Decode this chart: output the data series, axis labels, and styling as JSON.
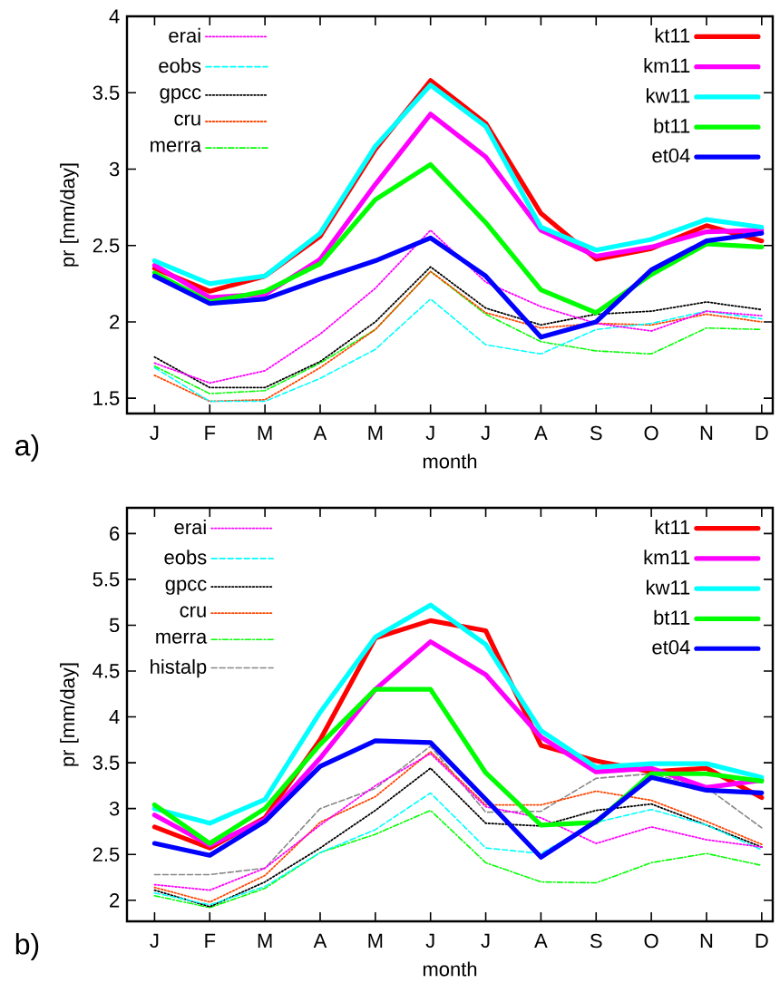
{
  "chart_data": [
    {
      "type": "line",
      "xlabel": "month",
      "ylabel": "pr [mm/day]",
      "annotations": [
        "a)"
      ],
      "categories": [
        "J",
        "F",
        "M",
        "A",
        "M",
        "J",
        "J",
        "A",
        "S",
        "O",
        "N",
        "D"
      ],
      "ylim": [
        1.4,
        4
      ],
      "yticks": [
        1.5,
        2,
        2.5,
        3,
        3.5,
        4
      ],
      "legend": "top",
      "marker": "none",
      "series": [
        {
          "name": "erai",
          "color": "#ff00ff",
          "line_style": "dotted",
          "values": [
            1.73,
            1.6,
            1.68,
            1.92,
            2.22,
            2.6,
            2.26,
            2.1,
            1.99,
            1.94,
            2.07,
            2.04
          ]
        },
        {
          "name": "eobs",
          "color": "#00ffff",
          "line_style": "dashed",
          "values": [
            1.7,
            1.48,
            1.48,
            1.63,
            1.82,
            2.15,
            1.85,
            1.79,
            1.95,
            1.99,
            2.07,
            2.02
          ]
        },
        {
          "name": "gpcc",
          "color": "#000000",
          "line_style": "dotted",
          "values": [
            1.77,
            1.57,
            1.57,
            1.74,
            2.0,
            2.36,
            2.09,
            1.98,
            2.05,
            2.07,
            2.13,
            2.08
          ]
        },
        {
          "name": "cru",
          "color": "#ff4500",
          "line_style": "dotted",
          "values": [
            1.65,
            1.48,
            1.49,
            1.7,
            1.95,
            2.33,
            2.06,
            1.96,
            1.99,
            1.98,
            2.05,
            2.0
          ]
        },
        {
          "name": "merra",
          "color": "#00ff00",
          "line_style": "dashdot",
          "values": [
            1.71,
            1.53,
            1.55,
            1.73,
            1.95,
            2.33,
            2.05,
            1.87,
            1.81,
            1.79,
            1.96,
            1.95
          ]
        },
        {
          "name": "kt11",
          "color": "#ff0000",
          "line_style": "solid",
          "values": [
            2.35,
            2.2,
            2.3,
            2.56,
            3.13,
            3.58,
            3.3,
            2.71,
            2.41,
            2.48,
            2.63,
            2.53
          ]
        },
        {
          "name": "km11",
          "color": "#ff00ff",
          "line_style": "solid",
          "values": [
            2.37,
            2.16,
            2.18,
            2.41,
            2.9,
            3.36,
            3.08,
            2.6,
            2.43,
            2.49,
            2.59,
            2.6
          ]
        },
        {
          "name": "kw11",
          "color": "#00ffff",
          "line_style": "solid",
          "values": [
            2.4,
            2.25,
            2.3,
            2.58,
            3.15,
            3.55,
            3.28,
            2.62,
            2.47,
            2.54,
            2.67,
            2.62
          ]
        },
        {
          "name": "bt11",
          "color": "#00ff00",
          "line_style": "solid",
          "values": [
            2.32,
            2.13,
            2.2,
            2.38,
            2.8,
            3.03,
            2.65,
            2.21,
            2.06,
            2.31,
            2.51,
            2.49
          ]
        },
        {
          "name": "et04",
          "color": "#0000ff",
          "line_style": "solid",
          "values": [
            2.3,
            2.12,
            2.15,
            2.28,
            2.4,
            2.55,
            2.3,
            1.9,
            2.0,
            2.34,
            2.53,
            2.58
          ]
        }
      ]
    },
    {
      "type": "line",
      "xlabel": "month",
      "ylabel": "pr [mm/day]",
      "annotations": [
        "b)"
      ],
      "categories": [
        "J",
        "F",
        "M",
        "A",
        "M",
        "J",
        "J",
        "A",
        "S",
        "O",
        "N",
        "D"
      ],
      "ylim": [
        1.77,
        6.28
      ],
      "yticks": [
        2,
        2.5,
        3,
        3.5,
        4,
        4.5,
        5,
        5.5,
        6
      ],
      "legend": "top",
      "marker": "none",
      "series": [
        {
          "name": "erai",
          "color": "#ff00ff",
          "line_style": "dotted",
          "values": [
            2.17,
            2.11,
            2.35,
            2.82,
            3.25,
            3.6,
            3.02,
            2.9,
            2.62,
            2.8,
            2.66,
            2.58
          ]
        },
        {
          "name": "eobs",
          "color": "#00ffff",
          "line_style": "dashed",
          "values": [
            2.08,
            1.95,
            2.15,
            2.52,
            2.77,
            3.17,
            2.57,
            2.51,
            2.85,
            2.99,
            2.82,
            2.55
          ]
        },
        {
          "name": "gpcc",
          "color": "#000000",
          "line_style": "dotted",
          "values": [
            2.11,
            1.93,
            2.2,
            2.57,
            2.98,
            3.44,
            2.84,
            2.81,
            2.98,
            3.05,
            2.82,
            2.58
          ]
        },
        {
          "name": "cru",
          "color": "#ff4500",
          "line_style": "dotted",
          "values": [
            2.14,
            1.98,
            2.27,
            2.85,
            3.13,
            3.62,
            3.04,
            3.04,
            3.19,
            3.09,
            2.86,
            2.61
          ]
        },
        {
          "name": "merra",
          "color": "#00ff00",
          "line_style": "dashdot",
          "values": [
            2.05,
            1.92,
            2.13,
            2.52,
            2.72,
            2.98,
            2.41,
            2.2,
            2.19,
            2.41,
            2.51,
            2.38
          ]
        },
        {
          "name": "histalp",
          "color": "#888888",
          "line_style": "dashed",
          "values": [
            2.28,
            2.28,
            2.35,
            3.0,
            3.22,
            3.68,
            2.96,
            2.97,
            3.33,
            3.38,
            3.23,
            2.79
          ]
        },
        {
          "name": "kt11",
          "color": "#ff0000",
          "line_style": "solid",
          "values": [
            2.8,
            2.57,
            2.9,
            3.75,
            4.86,
            5.05,
            4.94,
            3.69,
            3.52,
            3.4,
            3.44,
            3.12
          ]
        },
        {
          "name": "km11",
          "color": "#ff00ff",
          "line_style": "solid",
          "values": [
            2.93,
            2.6,
            2.88,
            3.55,
            4.3,
            4.82,
            4.46,
            3.78,
            3.4,
            3.44,
            3.23,
            3.31
          ]
        },
        {
          "name": "kw11",
          "color": "#00ffff",
          "line_style": "solid",
          "values": [
            3.0,
            2.84,
            3.1,
            4.05,
            4.87,
            5.22,
            4.79,
            3.85,
            3.45,
            3.49,
            3.49,
            3.34
          ]
        },
        {
          "name": "bt11",
          "color": "#00ff00",
          "line_style": "solid",
          "values": [
            3.04,
            2.62,
            3.0,
            3.7,
            4.3,
            4.3,
            3.39,
            2.82,
            2.85,
            3.38,
            3.38,
            3.3
          ]
        },
        {
          "name": "et04",
          "color": "#0000ff",
          "line_style": "solid",
          "values": [
            2.62,
            2.49,
            2.86,
            3.46,
            3.74,
            3.72,
            3.1,
            2.47,
            2.86,
            3.34,
            3.2,
            3.17
          ]
        }
      ]
    }
  ]
}
